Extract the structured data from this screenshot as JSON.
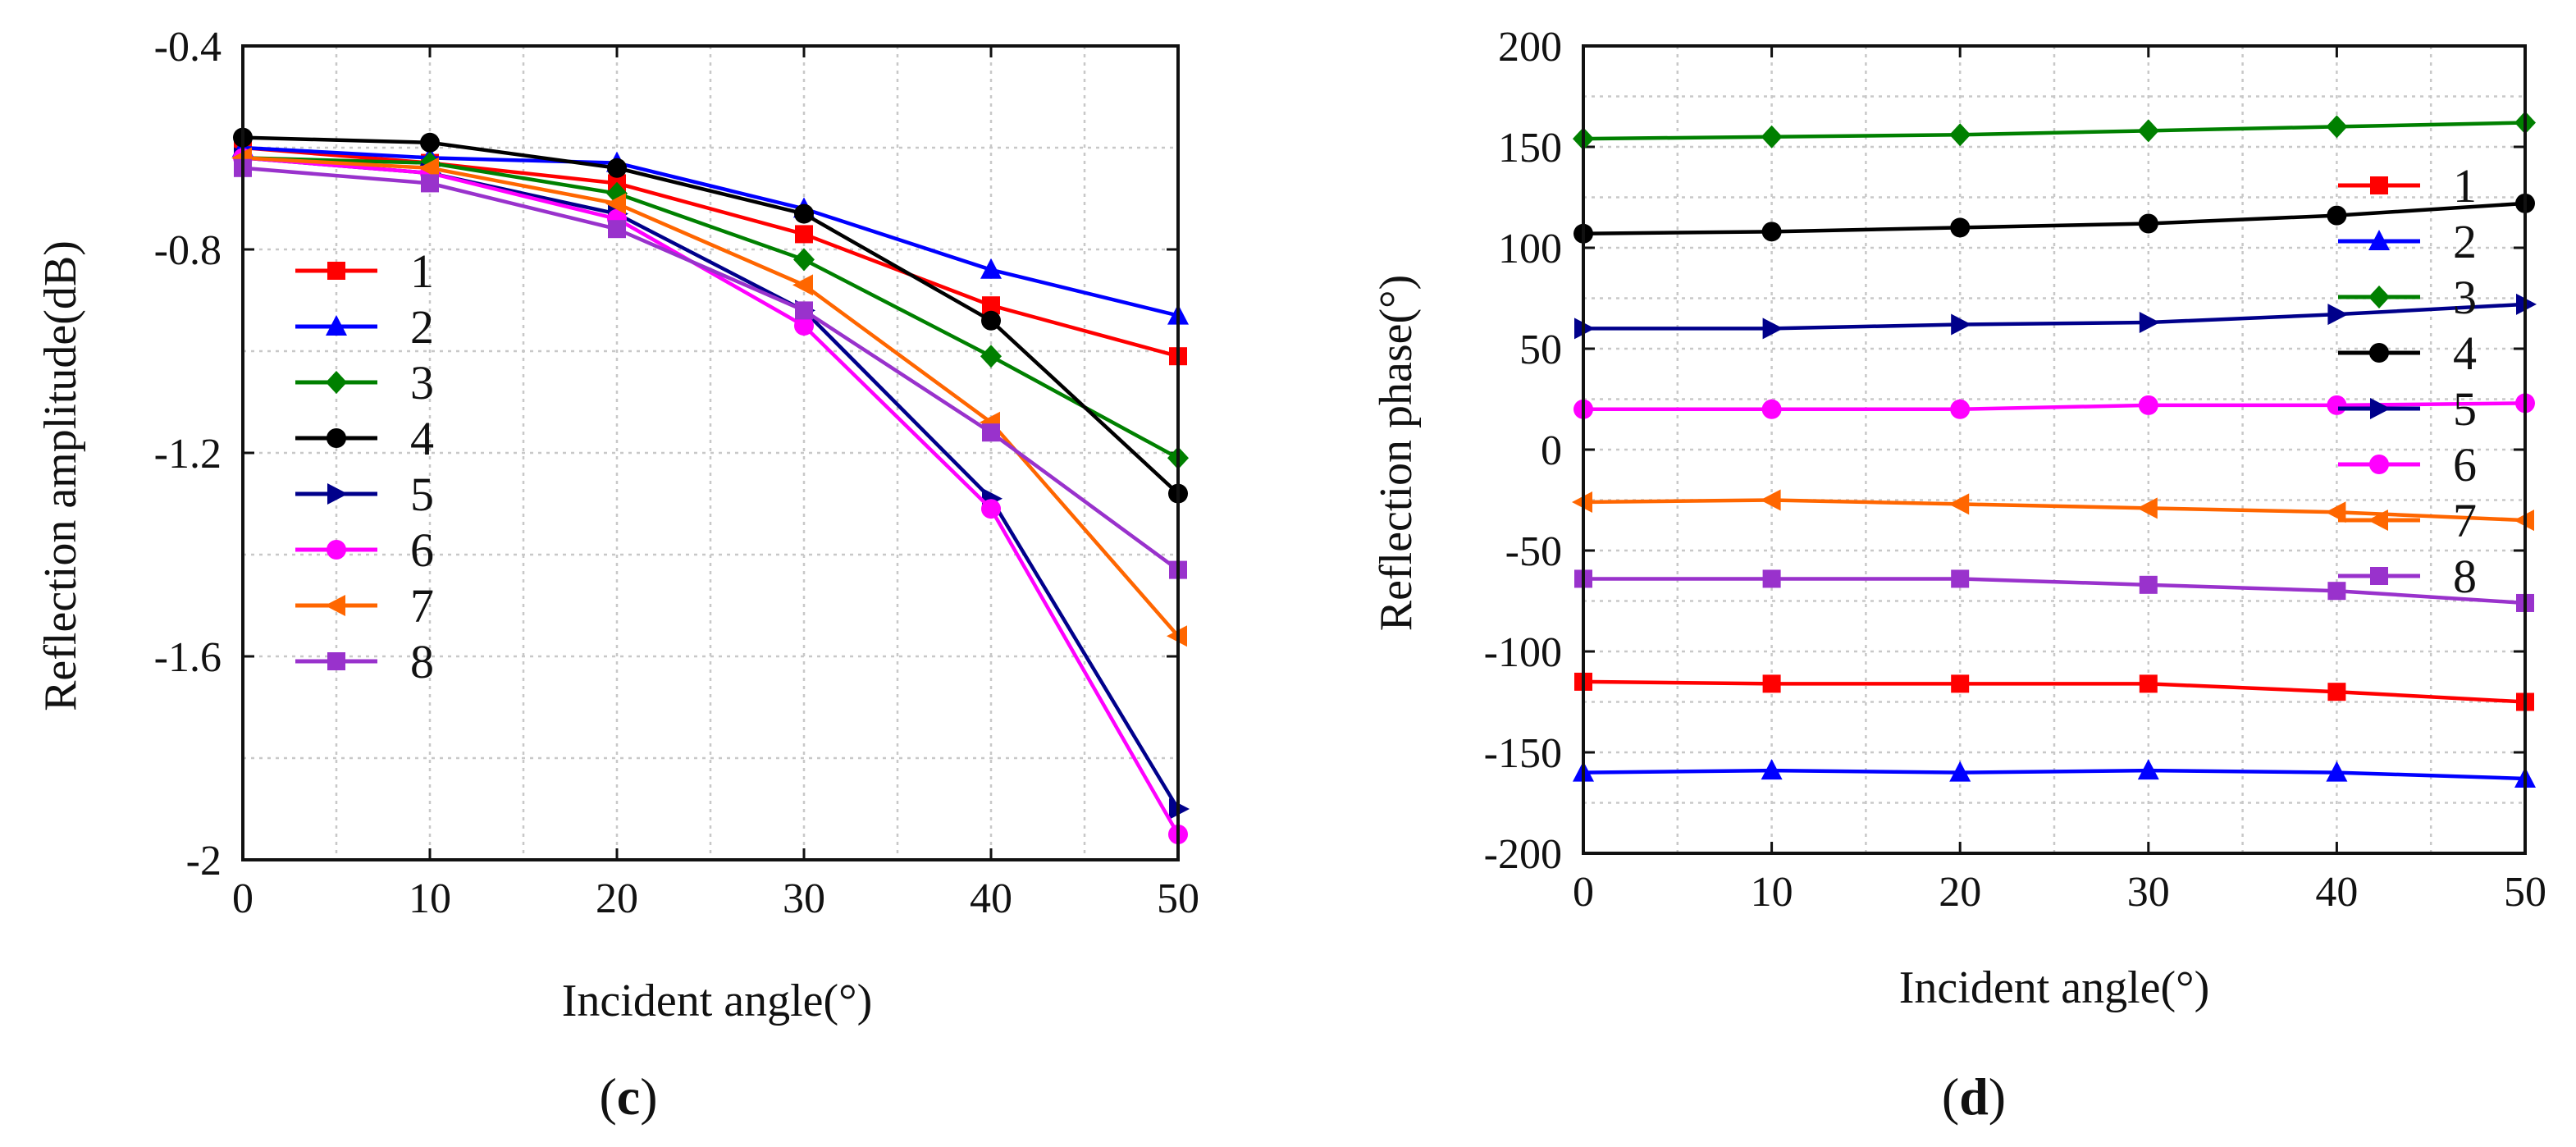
{
  "chart_data": [
    {
      "id": "c",
      "type": "line",
      "caption_letter": "c",
      "xlabel": "Incident angle(°)",
      "ylabel": "Reflection amplitude(dB)",
      "xlim": [
        0,
        50
      ],
      "ylim": [
        -2,
        -0.4
      ],
      "xticks": [
        0,
        10,
        20,
        30,
        40,
        50
      ],
      "yticks": [
        -2,
        -1.6,
        -1.2,
        -0.8,
        -0.4
      ],
      "ytick_labels": [
        "-2",
        "-1.6",
        "-1.2",
        "-0.8",
        "-0.4"
      ],
      "grid": true,
      "legend_position": "left",
      "x": [
        0,
        10,
        20,
        30,
        40,
        50
      ],
      "series": [
        {
          "name": "1",
          "color": "#ff0000",
          "marker": "square",
          "values": [
            -0.6,
            -0.63,
            -0.67,
            -0.77,
            -0.91,
            -1.01
          ]
        },
        {
          "name": "2",
          "color": "#0000ff",
          "marker": "triangle-up",
          "values": [
            -0.6,
            -0.62,
            -0.63,
            -0.72,
            -0.84,
            -0.93
          ]
        },
        {
          "name": "3",
          "color": "#008000",
          "marker": "diamond",
          "values": [
            -0.62,
            -0.63,
            -0.69,
            -0.82,
            -1.01,
            -1.21
          ]
        },
        {
          "name": "4",
          "color": "#000000",
          "marker": "circle",
          "values": [
            -0.58,
            -0.59,
            -0.64,
            -0.73,
            -0.94,
            -1.28
          ]
        },
        {
          "name": "5",
          "color": "#00008b",
          "marker": "triangle-right",
          "values": [
            -0.62,
            -0.65,
            -0.73,
            -0.92,
            -1.29,
            -1.9
          ]
        },
        {
          "name": "6",
          "color": "#ff00ff",
          "marker": "circle",
          "values": [
            -0.62,
            -0.65,
            -0.74,
            -0.95,
            -1.31,
            -1.95
          ]
        },
        {
          "name": "7",
          "color": "#ff6600",
          "marker": "triangle-left",
          "values": [
            -0.62,
            -0.64,
            -0.71,
            -0.87,
            -1.14,
            -1.56
          ]
        },
        {
          "name": "8",
          "color": "#9932cc",
          "marker": "square",
          "values": [
            -0.64,
            -0.67,
            -0.76,
            -0.92,
            -1.16,
            -1.43
          ]
        }
      ]
    },
    {
      "id": "d",
      "type": "line",
      "caption_letter": "d",
      "xlabel": "Incident angle(°)",
      "ylabel": "Reflection phase(°)",
      "xlim": [
        0,
        50
      ],
      "ylim": [
        -200,
        200
      ],
      "xticks": [
        0,
        10,
        20,
        30,
        40,
        50
      ],
      "yticks": [
        -200,
        -150,
        -100,
        -50,
        0,
        50,
        100,
        150,
        200
      ],
      "ytick_labels": [
        "-200",
        "-150",
        "-100",
        "-50",
        "0",
        "50",
        "100",
        "150",
        "200"
      ],
      "grid": true,
      "legend_position": "right",
      "x": [
        0,
        10,
        20,
        30,
        40,
        50
      ],
      "series": [
        {
          "name": "1",
          "color": "#ff0000",
          "marker": "square",
          "values": [
            -115,
            -116,
            -116,
            -116,
            -120,
            -125
          ]
        },
        {
          "name": "2",
          "color": "#0000ff",
          "marker": "triangle-up",
          "values": [
            -160,
            -159,
            -160,
            -159,
            -160,
            -163
          ]
        },
        {
          "name": "3",
          "color": "#008000",
          "marker": "diamond",
          "values": [
            154,
            155,
            156,
            158,
            160,
            162
          ]
        },
        {
          "name": "4",
          "color": "#000000",
          "marker": "circle",
          "values": [
            107,
            108,
            110,
            112,
            116,
            122
          ]
        },
        {
          "name": "5",
          "color": "#00008b",
          "marker": "triangle-right",
          "values": [
            60,
            60,
            62,
            63,
            67,
            72
          ]
        },
        {
          "name": "6",
          "color": "#ff00ff",
          "marker": "circle",
          "values": [
            20,
            20,
            20,
            22,
            22,
            23
          ]
        },
        {
          "name": "7",
          "color": "#ff6600",
          "marker": "triangle-left",
          "values": [
            -26,
            -25,
            -27,
            -29,
            -31,
            -35
          ]
        },
        {
          "name": "8",
          "color": "#9932cc",
          "marker": "square",
          "values": [
            -64,
            -64,
            -64,
            -67,
            -70,
            -76
          ]
        }
      ]
    }
  ]
}
